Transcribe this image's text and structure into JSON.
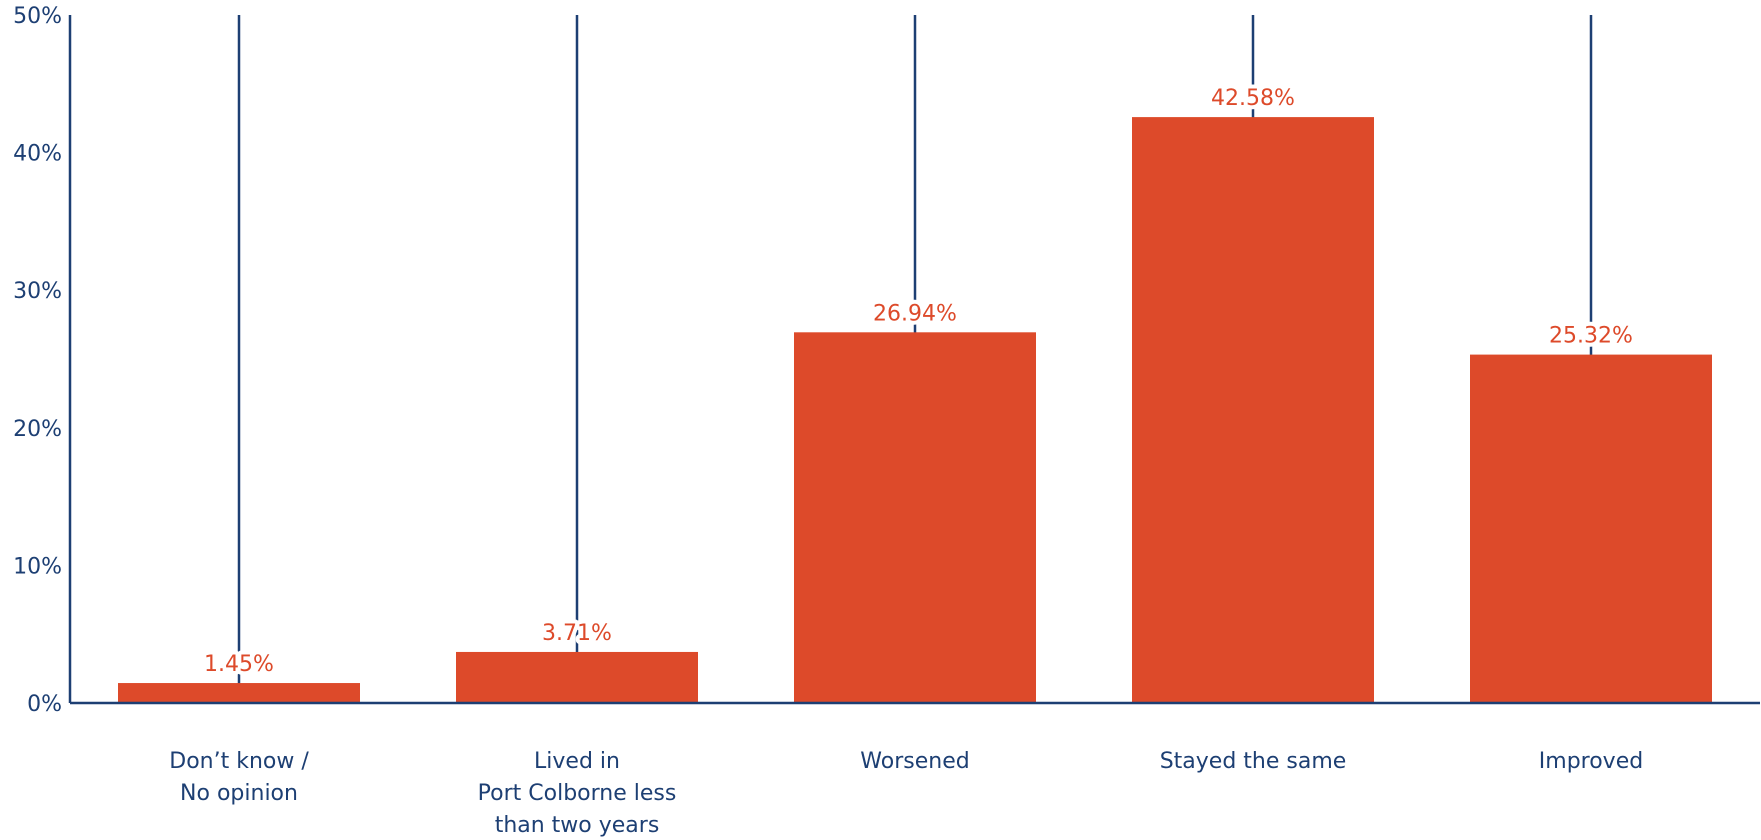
{
  "chart_data": {
    "type": "bar",
    "categories": [
      [
        "Don’t know /",
        "No opinion"
      ],
      [
        "Lived in",
        "Port Colborne less",
        "than two years"
      ],
      [
        "Worsened"
      ],
      [
        "Stayed the same"
      ],
      [
        "Improved"
      ]
    ],
    "values": [
      1.45,
      3.71,
      26.94,
      42.58,
      25.32
    ],
    "data_labels": [
      "1.45%",
      "3.71%",
      "26.94%",
      "42.58%",
      "25.32%"
    ],
    "ylim": [
      0,
      50
    ],
    "yticks": [
      0,
      10,
      20,
      30,
      40,
      50
    ],
    "ytick_labels": [
      "0%",
      "10%",
      "20%",
      "30%",
      "40%",
      "50%"
    ],
    "title": "",
    "xlabel": "",
    "ylabel": "",
    "grid": "vertical lines at category centers",
    "colors": {
      "bar": "#dd4a2a",
      "axis": "#1d3f73",
      "text": "#1d3f73",
      "label": "#dd4a2a"
    }
  }
}
